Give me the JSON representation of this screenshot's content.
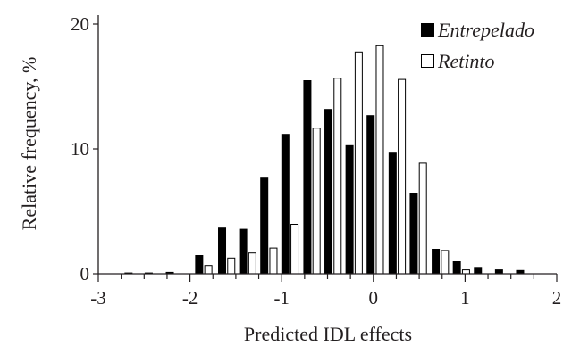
{
  "chart_data": {
    "type": "bar",
    "xlabel": "Predicted IDL effects",
    "ylabel": "Relative frequency, %",
    "xlim": [
      -3,
      2
    ],
    "ylim": [
      0,
      20
    ],
    "x_ticks": [
      "-3",
      "-2",
      "-1",
      "0",
      "1",
      "2"
    ],
    "y_ticks": [
      "0",
      "10",
      "20"
    ],
    "legend_position": "top-right",
    "series": [
      {
        "name": "Entrepelado",
        "color": "#000000",
        "points": [
          {
            "x": -2.67,
            "y": 0.1
          },
          {
            "x": -2.45,
            "y": 0.1
          },
          {
            "x": -2.22,
            "y": 0.15
          },
          {
            "x": -1.9,
            "y": 1.5
          },
          {
            "x": -1.65,
            "y": 3.7
          },
          {
            "x": -1.42,
            "y": 3.6
          },
          {
            "x": -1.19,
            "y": 7.7
          },
          {
            "x": -0.96,
            "y": 11.2
          },
          {
            "x": -0.72,
            "y": 15.5
          },
          {
            "x": -0.49,
            "y": 13.2
          },
          {
            "x": -0.26,
            "y": 10.3
          },
          {
            "x": -0.03,
            "y": 12.7
          },
          {
            "x": 0.21,
            "y": 9.7
          },
          {
            "x": 0.44,
            "y": 6.5
          },
          {
            "x": 0.68,
            "y": 2.0
          },
          {
            "x": 0.91,
            "y": 1.0
          },
          {
            "x": 1.14,
            "y": 0.55
          },
          {
            "x": 1.37,
            "y": 0.35
          },
          {
            "x": 1.6,
            "y": 0.3
          }
        ]
      },
      {
        "name": "Retinto",
        "color": "#ffffff",
        "points": [
          {
            "x": -1.8,
            "y": 0.7
          },
          {
            "x": -1.55,
            "y": 1.3
          },
          {
            "x": -1.32,
            "y": 1.7
          },
          {
            "x": -1.09,
            "y": 2.1
          },
          {
            "x": -0.86,
            "y": 4.0
          },
          {
            "x": -0.62,
            "y": 11.7
          },
          {
            "x": -0.39,
            "y": 15.7
          },
          {
            "x": -0.16,
            "y": 17.8
          },
          {
            "x": 0.07,
            "y": 18.3
          },
          {
            "x": 0.31,
            "y": 15.6
          },
          {
            "x": 0.54,
            "y": 8.9
          },
          {
            "x": 0.78,
            "y": 1.9
          },
          {
            "x": 1.01,
            "y": 0.35
          }
        ]
      }
    ]
  }
}
